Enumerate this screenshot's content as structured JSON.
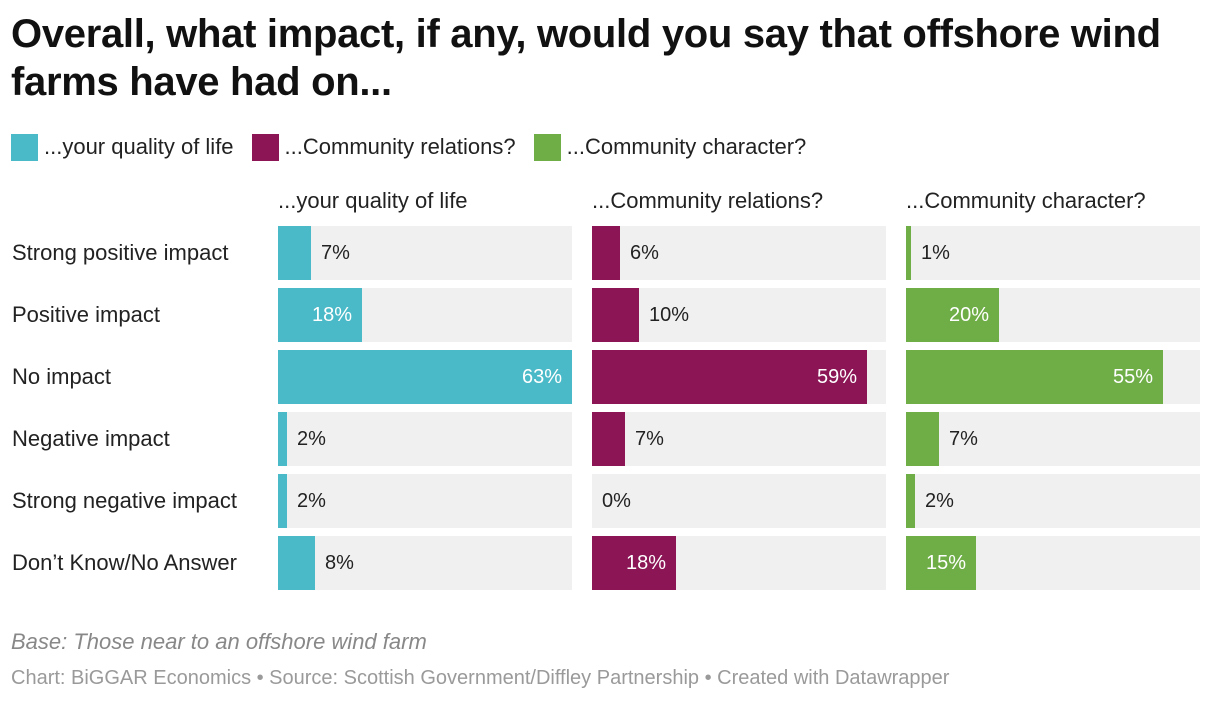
{
  "title": "Overall, what impact, if any, would you say that offshore wind farms have had on...",
  "legend": [
    {
      "label": "...your quality of life",
      "color": "#4bbac8"
    },
    {
      "label": "...Community relations?",
      "color": "#8b1555"
    },
    {
      "label": "...Community character?",
      "color": "#6fae47"
    }
  ],
  "chart_data": {
    "type": "bar",
    "orientation": "horizontal",
    "layout": "small-multiples",
    "title": "Overall, what impact, if any, would you say that offshore wind farms have had on...",
    "categories": [
      "Strong positive impact",
      "Positive impact",
      "No impact",
      "Negative impact",
      "Strong negative impact",
      "Don’t Know/No Answer"
    ],
    "xlim": [
      0,
      63
    ],
    "unit": "%",
    "series": [
      {
        "name": "...your quality of life",
        "color": "#4bbac8",
        "values": [
          7,
          18,
          63,
          2,
          2,
          8
        ]
      },
      {
        "name": "...Community relations?",
        "color": "#8b1555",
        "values": [
          6,
          10,
          59,
          7,
          0,
          18
        ]
      },
      {
        "name": "...Community character?",
        "color": "#6fae47",
        "values": [
          1,
          20,
          55,
          7,
          2,
          15
        ]
      }
    ]
  },
  "notes": {
    "base": "Base: Those near to an offshore wind farm",
    "credit": "Chart: BiGGAR Economics • Source: Scottish Government/Diffley Partnership • Created with Datawrapper"
  }
}
